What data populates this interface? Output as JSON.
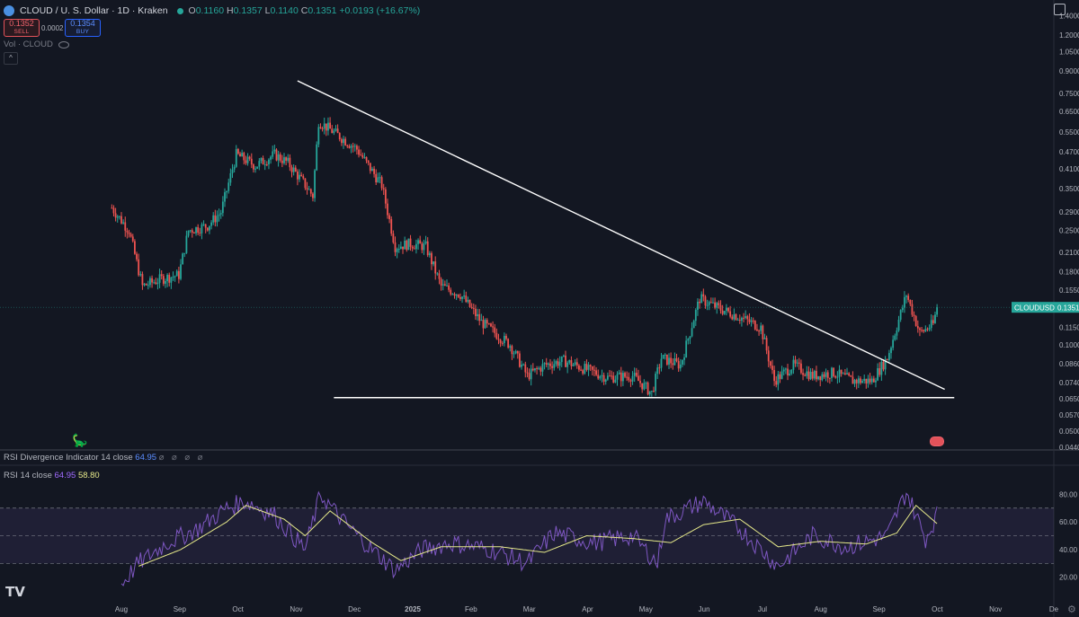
{
  "header": {
    "title": "CLOUD / U. S. Dollar · 1D · Kraken",
    "o_label": "O",
    "o_value": "0.1160",
    "h_label": "H",
    "h_value": "0.1357",
    "l_label": "L",
    "l_value": "0.1140",
    "c_label": "C",
    "c_value": "0.1351",
    "change": "+0.0193 (+16.67%)"
  },
  "trade": {
    "sell_price": "0.1352",
    "sell_label": "SELL",
    "spread": "0.0002",
    "buy_price": "0.1354",
    "buy_label": "BUY"
  },
  "volume_label": "Vol · CLOUD",
  "collapse_symbol": "^",
  "indicators": {
    "divergence": {
      "label": "RSI Divergence Indicator 14 close",
      "value": "64.95",
      "icons": "⌀ ⌀ ⌀ ⌀"
    },
    "rsi": {
      "label": "RSI 14 close",
      "value": "64.95",
      "ma_value": "58.80"
    }
  },
  "price_tag": {
    "symbol": "CLOUDUSD",
    "value": "0.1351"
  },
  "logo": "TV",
  "colors": {
    "up": "#26a69a",
    "down": "#ef5350",
    "rsi": "#7e57c2",
    "rsi_ma": "#e6e98a",
    "trendline": "#ffffff"
  },
  "chart_data": [
    {
      "type": "candlestick",
      "scale": "log",
      "x_ticks": [
        "Aug",
        "Sep",
        "Oct",
        "Nov",
        "Dec",
        "2025",
        "Feb",
        "Mar",
        "Apr",
        "May",
        "Jun",
        "Jul",
        "Aug",
        "Sep",
        "Oct",
        "Nov",
        "De"
      ],
      "y_ticks": [
        "1.4000",
        "1.2000",
        "1.0500",
        "0.9000",
        "0.7500",
        "0.6500",
        "0.5500",
        "0.4700",
        "0.4100",
        "0.3500",
        "0.2900",
        "0.2500",
        "0.2100",
        "0.1800",
        "0.1550",
        "0.1350",
        "0.1150",
        "0.1000",
        "0.0860",
        "0.0740",
        "0.0650",
        "0.0570",
        "0.0500",
        "0.0440"
      ],
      "ylim": [
        0.044,
        1.52
      ],
      "series_close": [
        [
          "2024-07-27",
          0.3
        ],
        [
          "2024-08-05",
          0.25
        ],
        [
          "2024-08-12",
          0.16
        ],
        [
          "2024-08-22",
          0.17
        ],
        [
          "2024-08-31",
          0.175
        ],
        [
          "2024-09-05",
          0.25
        ],
        [
          "2024-09-15",
          0.26
        ],
        [
          "2024-09-22",
          0.29
        ],
        [
          "2024-09-30",
          0.46
        ],
        [
          "2024-10-10",
          0.42
        ],
        [
          "2024-10-20",
          0.46
        ],
        [
          "2024-10-27",
          0.43
        ],
        [
          "2024-11-05",
          0.36
        ],
        [
          "2024-11-09",
          0.33
        ],
        [
          "2024-11-12",
          0.6
        ],
        [
          "2024-11-20",
          0.55
        ],
        [
          "2024-12-02",
          0.48
        ],
        [
          "2024-12-15",
          0.36
        ],
        [
          "2024-12-22",
          0.22
        ],
        [
          "2024-12-30",
          0.225
        ],
        [
          "2025-01-07",
          0.22
        ],
        [
          "2025-01-15",
          0.16
        ],
        [
          "2025-01-25",
          0.15
        ],
        [
          "2025-02-05",
          0.12
        ],
        [
          "2025-02-20",
          0.1
        ],
        [
          "2025-03-01",
          0.078
        ],
        [
          "2025-03-10",
          0.085
        ],
        [
          "2025-03-20",
          0.088
        ],
        [
          "2025-04-01",
          0.082
        ],
        [
          "2025-04-12",
          0.077
        ],
        [
          "2025-04-25",
          0.078
        ],
        [
          "2025-05-05",
          0.068
        ],
        [
          "2025-05-10",
          0.09
        ],
        [
          "2025-05-20",
          0.085
        ],
        [
          "2025-05-30",
          0.145
        ],
        [
          "2025-06-08",
          0.135
        ],
        [
          "2025-06-20",
          0.125
        ],
        [
          "2025-07-01",
          0.115
        ],
        [
          "2025-07-08",
          0.075
        ],
        [
          "2025-07-18",
          0.085
        ],
        [
          "2025-07-28",
          0.078
        ],
        [
          "2025-08-08",
          0.08
        ],
        [
          "2025-08-18",
          0.075
        ],
        [
          "2025-08-28",
          0.075
        ],
        [
          "2025-09-05",
          0.09
        ],
        [
          "2025-09-15",
          0.15
        ],
        [
          "2025-09-22",
          0.11
        ],
        [
          "2025-09-29",
          0.118
        ],
        [
          "2025-10-01",
          0.1351
        ]
      ],
      "last_close": 0.1351,
      "annotations": [
        {
          "type": "trendline",
          "from": [
            "2024-11-01",
            0.83
          ],
          "to": [
            "2025-10-05",
            0.07
          ]
        },
        {
          "type": "horizontal",
          "from": [
            "2024-11-20",
            0.0655
          ],
          "to": [
            "2025-10-10",
            0.0655
          ]
        }
      ]
    },
    {
      "type": "line",
      "title": "RSI 14 close",
      "y_ticks": [
        "80.00",
        "60.00",
        "40.00",
        "20.00"
      ],
      "ylim": [
        12,
        90
      ],
      "bands": [
        30,
        50,
        70
      ],
      "series": [
        {
          "name": "RSI",
          "points": [
            [
              "2024-08-01",
              15
            ],
            [
              "2024-08-10",
              30
            ],
            [
              "2024-08-25",
              45
            ],
            [
              "2024-09-10",
              55
            ],
            [
              "2024-09-25",
              70
            ],
            [
              "2024-10-05",
              75
            ],
            [
              "2024-10-20",
              65
            ],
            [
              "2024-11-05",
              40
            ],
            [
              "2024-11-13",
              80
            ],
            [
              "2024-11-25",
              60
            ],
            [
              "2024-12-10",
              40
            ],
            [
              "2024-12-22",
              25
            ],
            [
              "2025-01-05",
              40
            ],
            [
              "2025-01-20",
              45
            ],
            [
              "2025-02-10",
              40
            ],
            [
              "2025-03-01",
              30
            ],
            [
              "2025-03-15",
              52
            ],
            [
              "2025-04-05",
              45
            ],
            [
              "2025-04-25",
              50
            ],
            [
              "2025-05-08",
              30
            ],
            [
              "2025-05-12",
              62
            ],
            [
              "2025-06-01",
              75
            ],
            [
              "2025-06-20",
              55
            ],
            [
              "2025-07-10",
              28
            ],
            [
              "2025-07-28",
              50
            ],
            [
              "2025-08-15",
              42
            ],
            [
              "2025-09-05",
              50
            ],
            [
              "2025-09-15",
              82
            ],
            [
              "2025-09-25",
              48
            ],
            [
              "2025-10-01",
              64.95
            ]
          ]
        },
        {
          "name": "RSI MA",
          "points": [
            [
              "2024-08-10",
              28
            ],
            [
              "2024-09-01",
              40
            ],
            [
              "2024-09-25",
              60
            ],
            [
              "2024-10-05",
              72
            ],
            [
              "2024-10-25",
              62
            ],
            [
              "2024-11-05",
              50
            ],
            [
              "2024-11-18",
              68
            ],
            [
              "2024-12-10",
              45
            ],
            [
              "2024-12-25",
              32
            ],
            [
              "2025-01-15",
              42
            ],
            [
              "2025-02-15",
              42
            ],
            [
              "2025-03-10",
              38
            ],
            [
              "2025-04-01",
              50
            ],
            [
              "2025-04-25",
              48
            ],
            [
              "2025-05-15",
              45
            ],
            [
              "2025-06-01",
              58
            ],
            [
              "2025-06-20",
              62
            ],
            [
              "2025-07-10",
              42
            ],
            [
              "2025-08-01",
              46
            ],
            [
              "2025-08-25",
              44
            ],
            [
              "2025-09-10",
              52
            ],
            [
              "2025-09-20",
              72
            ],
            [
              "2025-10-01",
              58.8
            ]
          ]
        }
      ]
    }
  ]
}
